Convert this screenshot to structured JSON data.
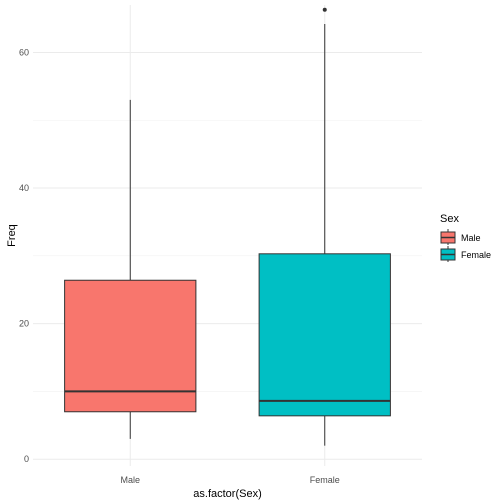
{
  "chart_data": {
    "type": "boxplot",
    "xlabel": "as.factor(Sex)",
    "ylabel": "Freq",
    "ylim": [
      -1,
      67
    ],
    "y_ticks": [
      0,
      20,
      40,
      60
    ],
    "grid": true,
    "legend": {
      "title": "Sex",
      "placement": "right",
      "entries": [
        {
          "label": "Male",
          "color": "#F8766D"
        },
        {
          "label": "Female",
          "color": "#00BFC4"
        }
      ]
    },
    "categories": [
      "Male",
      "Female"
    ],
    "series": [
      {
        "category": "Male",
        "min": 3,
        "q1": 7,
        "median": 10,
        "q3": 26.4,
        "max": 53,
        "outliers": [],
        "color": "#F8766D"
      },
      {
        "category": "Female",
        "min": 2,
        "q1": 6.4,
        "median": 8.6,
        "q3": 30.3,
        "max": 64.2,
        "outliers": [
          66.3
        ],
        "color": "#00BFC4"
      }
    ]
  }
}
